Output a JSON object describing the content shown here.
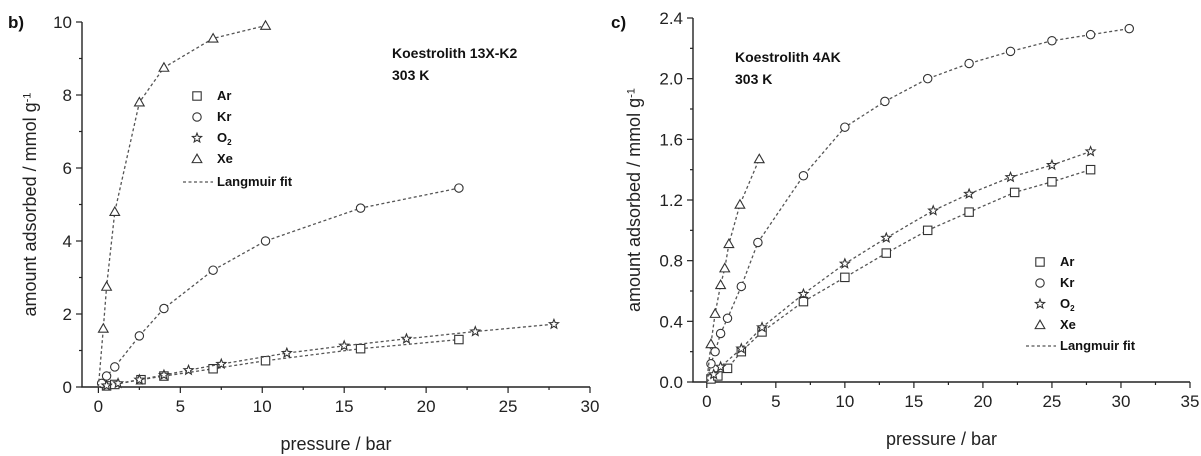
{
  "chart_data": [
    {
      "type": "scatter",
      "panel_label": "b)",
      "annotation": [
        "Koestrolith 13X-K2",
        "303 K"
      ],
      "xlabel": "pressure / bar",
      "ylabel": "amount adsorbed / mmol g⁻¹",
      "xlim": [
        -1,
        30
      ],
      "ylim": [
        0,
        10
      ],
      "xticks": [
        0,
        5,
        10,
        15,
        20,
        25,
        30
      ],
      "xtick_labels": [
        "0",
        "5",
        "10",
        "15",
        "20",
        "25",
        "30"
      ],
      "yticks": [
        0,
        2,
        4,
        6,
        8,
        10
      ],
      "ytick_labels": [
        "0",
        "2",
        "4",
        "6",
        "8",
        "10"
      ],
      "legend_position": "upper-middle",
      "legend": [
        "Ar",
        "Kr",
        "O₂",
        "Xe",
        "Langmuir fit"
      ],
      "fit_label": "Langmuir fit",
      "series": [
        {
          "name": "Ar",
          "marker": "square",
          "x": [
            0.5,
            1.0,
            2.6,
            4.0,
            7.0,
            10.2,
            16.0,
            22.0
          ],
          "y": [
            0.03,
            0.07,
            0.2,
            0.3,
            0.5,
            0.72,
            1.05,
            1.3
          ]
        },
        {
          "name": "Kr",
          "marker": "circle",
          "x": [
            0.2,
            0.5,
            1.0,
            2.5,
            4.0,
            7.0,
            10.2,
            16.0,
            22.0
          ],
          "y": [
            0.1,
            0.3,
            0.55,
            1.4,
            2.15,
            3.2,
            4.0,
            4.9,
            5.45
          ]
        },
        {
          "name": "O₂",
          "marker": "star",
          "x": [
            0.5,
            1.2,
            2.5,
            4.0,
            5.5,
            7.5,
            11.5,
            15.0,
            18.8,
            23.0,
            27.8
          ],
          "y": [
            0.04,
            0.1,
            0.2,
            0.33,
            0.46,
            0.63,
            0.93,
            1.13,
            1.32,
            1.52,
            1.72
          ]
        },
        {
          "name": "Xe",
          "marker": "triangle",
          "x": [
            0.3,
            0.5,
            1.0,
            2.5,
            4.0,
            7.0,
            10.2
          ],
          "y": [
            1.6,
            2.75,
            4.8,
            7.8,
            8.75,
            9.55,
            9.9
          ]
        }
      ]
    },
    {
      "type": "scatter",
      "panel_label": "c)",
      "annotation": [
        "Koestrolith 4AK",
        "303 K"
      ],
      "xlabel": "pressure / bar",
      "ylabel": "amount adsorbed / mmol g⁻¹",
      "xlim": [
        -1,
        35
      ],
      "ylim": [
        0,
        2.4
      ],
      "xticks": [
        0,
        5,
        10,
        15,
        20,
        25,
        30,
        35
      ],
      "xtick_labels": [
        "0",
        "5",
        "10",
        "15",
        "20",
        "25",
        "30",
        "35"
      ],
      "yticks": [
        0,
        0.4,
        0.8,
        1.2,
        1.6,
        2.0,
        2.4
      ],
      "ytick_labels": [
        "0.0",
        "0.4",
        "0.8",
        "1.2",
        "1.6",
        "2.0",
        "2.4"
      ],
      "legend_position": "lower-right",
      "legend": [
        "Ar",
        "Kr",
        "O₂",
        "Xe",
        "Langmuir fit"
      ],
      "fit_label": "Langmuir fit",
      "series": [
        {
          "name": "Ar",
          "marker": "square",
          "x": [
            0.3,
            0.8,
            1.5,
            2.5,
            4.0,
            7.0,
            10.0,
            13.0,
            16.0,
            19.0,
            22.3,
            25.0,
            27.8
          ],
          "y": [
            0.02,
            0.04,
            0.09,
            0.2,
            0.33,
            0.53,
            0.69,
            0.85,
            1.0,
            1.12,
            1.25,
            1.32,
            1.4
          ]
        },
        {
          "name": "Kr",
          "marker": "circle",
          "x": [
            0.3,
            0.6,
            1.0,
            1.5,
            2.5,
            3.7,
            7.0,
            10.0,
            12.9,
            16.0,
            19.0,
            22.0,
            25.0,
            27.8,
            30.6
          ],
          "y": [
            0.12,
            0.2,
            0.32,
            0.42,
            0.63,
            0.92,
            1.36,
            1.68,
            1.85,
            2.0,
            2.1,
            2.18,
            2.25,
            2.29,
            2.33
          ]
        },
        {
          "name": "O₂",
          "marker": "star",
          "x": [
            0.5,
            1.0,
            2.5,
            4.0,
            7.0,
            10.0,
            13.0,
            16.4,
            19.0,
            22.0,
            25.0,
            27.8
          ],
          "y": [
            0.05,
            0.1,
            0.22,
            0.36,
            0.58,
            0.78,
            0.95,
            1.13,
            1.24,
            1.35,
            1.43,
            1.52
          ]
        },
        {
          "name": "Xe",
          "marker": "triangle",
          "x": [
            0.3,
            0.6,
            1.0,
            1.3,
            1.6,
            2.4,
            3.8
          ],
          "y": [
            0.25,
            0.45,
            0.64,
            0.75,
            0.91,
            1.17,
            1.47
          ]
        }
      ]
    }
  ]
}
